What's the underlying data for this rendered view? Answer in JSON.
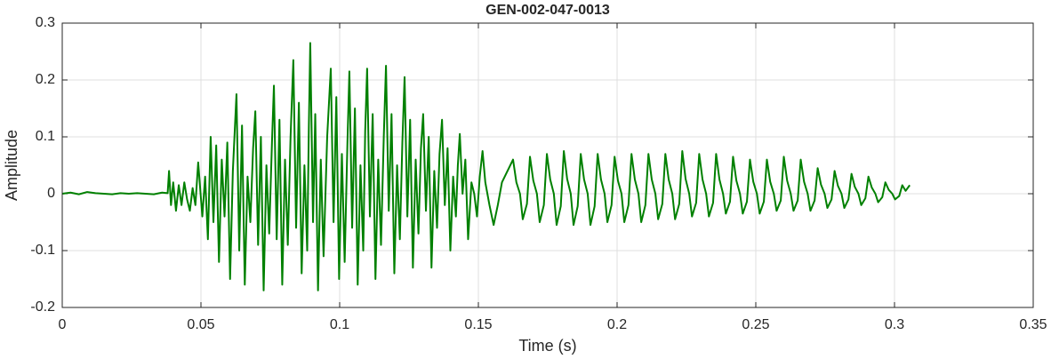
{
  "chart_data": {
    "type": "line",
    "title": "GEN-002-047-0013",
    "xlabel": "Time (s)",
    "ylabel": "Amplitude",
    "xlim": [
      0,
      0.35
    ],
    "xticks": [
      0,
      0.05,
      0.1,
      0.15,
      0.2,
      0.25,
      0.3,
      0.35
    ],
    "ylim": [
      -0.2,
      0.3
    ],
    "yticks": [
      -0.2,
      -0.1,
      0,
      0.1,
      0.2,
      0.3
    ],
    "grid": true,
    "color": "#008000",
    "x": [
      0,
      0.003,
      0.006,
      0.009,
      0.012,
      0.015,
      0.018,
      0.021,
      0.024,
      0.027,
      0.03,
      0.033,
      0.036,
      0.038,
      0.0385,
      0.0392,
      0.04,
      0.041,
      0.042,
      0.043,
      0.044,
      0.045,
      0.046,
      0.047,
      0.048,
      0.049,
      0.0505,
      0.0515,
      0.0525,
      0.0535,
      0.0545,
      0.0555,
      0.0565,
      0.0575,
      0.0585,
      0.0595,
      0.0605,
      0.0615,
      0.0628,
      0.0638,
      0.0648,
      0.0658,
      0.0668,
      0.0678,
      0.0688,
      0.0696,
      0.0706,
      0.0716,
      0.0726,
      0.0736,
      0.0746,
      0.0756,
      0.0763,
      0.0773,
      0.0783,
      0.0793,
      0.0803,
      0.0813,
      0.0823,
      0.0833,
      0.0843,
      0.0853,
      0.0863,
      0.0873,
      0.0883,
      0.0889,
      0.0894,
      0.0904,
      0.0912,
      0.0922,
      0.0932,
      0.0942,
      0.0955,
      0.0968,
      0.0978,
      0.0988,
      0.0998,
      0.1008,
      0.1018,
      0.1028,
      0.1035,
      0.1045,
      0.1055,
      0.1065,
      0.1075,
      0.1085,
      0.1092,
      0.1099,
      0.1109,
      0.1119,
      0.1129,
      0.1139,
      0.1149,
      0.1159,
      0.1167,
      0.1177,
      0.1187,
      0.1197,
      0.1207,
      0.1217,
      0.1226,
      0.1234,
      0.1244,
      0.1254,
      0.1264,
      0.1274,
      0.1284,
      0.1293,
      0.1301,
      0.1311,
      0.1321,
      0.1331,
      0.1341,
      0.1351,
      0.136,
      0.1369,
      0.1379,
      0.1389,
      0.1399,
      0.1409,
      0.1419,
      0.1426,
      0.1433,
      0.1443,
      0.1453,
      0.1463,
      0.1475,
      0.1485,
      0.1495,
      0.1505,
      0.1515,
      0.1525,
      0.154,
      0.1555,
      0.157,
      0.1585,
      0.1625,
      0.1637,
      0.165,
      0.166,
      0.1675,
      0.1686,
      0.1698,
      0.1711,
      0.1721,
      0.1736,
      0.1747,
      0.1759,
      0.1772,
      0.1782,
      0.1797,
      0.1808,
      0.182,
      0.1833,
      0.1843,
      0.1858,
      0.1869,
      0.1881,
      0.1894,
      0.1904,
      0.1919,
      0.193,
      0.1942,
      0.1955,
      0.1965,
      0.198,
      0.1991,
      0.2003,
      0.2016,
      0.2026,
      0.2041,
      0.2052,
      0.2064,
      0.2077,
      0.2087,
      0.2102,
      0.2113,
      0.2125,
      0.2138,
      0.2148,
      0.2163,
      0.2174,
      0.2186,
      0.2199,
      0.2209,
      0.2224,
      0.2235,
      0.2247,
      0.226,
      0.227,
      0.2285,
      0.2296,
      0.2308,
      0.2321,
      0.2331,
      0.2346,
      0.2357,
      0.2369,
      0.2382,
      0.2392,
      0.2407,
      0.2418,
      0.243,
      0.2443,
      0.2453,
      0.2468,
      0.2479,
      0.2491,
      0.2504,
      0.2514,
      0.2529,
      0.254,
      0.2552,
      0.2565,
      0.2575,
      0.259,
      0.2601,
      0.2613,
      0.2626,
      0.2636,
      0.2651,
      0.2662,
      0.2674,
      0.2687,
      0.2697,
      0.2712,
      0.2723,
      0.2735,
      0.2748,
      0.2758,
      0.2773,
      0.2784,
      0.2796,
      0.2809,
      0.2819,
      0.2834,
      0.2845,
      0.2857,
      0.287,
      0.288,
      0.2895,
      0.2906,
      0.2918,
      0.2931,
      0.2941,
      0.2956,
      0.2967,
      0.2979,
      0.2992,
      0.3002,
      0.3017,
      0.3028,
      0.304,
      0.3055
    ],
    "values": [
      0,
      0.002,
      -0.001,
      0.003,
      0.001,
      0,
      -0.001,
      0.001,
      0,
      0.001,
      0,
      -0.001,
      0.002,
      0.001,
      0.04,
      -0.02,
      0.02,
      -0.03,
      0.015,
      -0.02,
      0.02,
      -0.01,
      -0.03,
      0.01,
      -0.02,
      0.055,
      -0.04,
      0.03,
      -0.08,
      0.1,
      -0.05,
      0.085,
      -0.12,
      0.06,
      -0.04,
      0.09,
      -0.15,
      0.04,
      0.175,
      -0.1,
      0.12,
      -0.16,
      0.03,
      -0.05,
      0.08,
      0.145,
      -0.09,
      0.1,
      -0.17,
      0.05,
      -0.07,
      0.09,
      0.19,
      -0.08,
      0.13,
      -0.16,
      0.06,
      -0.09,
      0.1,
      0.235,
      -0.06,
      0.16,
      -0.14,
      0.05,
      -0.1,
      0.12,
      0.265,
      -0.05,
      0.14,
      -0.17,
      0.06,
      -0.11,
      0.1,
      0.22,
      -0.05,
      0.17,
      -0.15,
      0.07,
      -0.12,
      0.09,
      0.215,
      -0.06,
      0.15,
      -0.16,
      0.05,
      -0.1,
      0.11,
      0.22,
      -0.04,
      0.14,
      -0.15,
      0.06,
      -0.09,
      0.1,
      0.225,
      -0.03,
      0.14,
      -0.14,
      0.05,
      -0.08,
      0.09,
      0.205,
      -0.04,
      0.13,
      -0.13,
      0.06,
      -0.07,
      0.08,
      0.14,
      -0.03,
      0.1,
      -0.13,
      0.04,
      -0.06,
      0.07,
      0.13,
      -0.02,
      0.08,
      -0.1,
      0.03,
      -0.04,
      0.05,
      0.105,
      0,
      0.06,
      -0.08,
      0.02,
      0,
      -0.04,
      0.03,
      0.075,
      0.02,
      -0.02,
      -0.055,
      -0.02,
      0.02,
      0.06,
      0.02,
      0,
      -0.045,
      -0.018,
      0.065,
      0.023,
      0,
      -0.05,
      -0.02,
      0.07,
      0.025,
      0,
      -0.055,
      -0.022,
      0.075,
      0.026,
      0,
      -0.055,
      -0.022,
      0.07,
      0.025,
      0,
      -0.055,
      -0.022,
      0.07,
      0.025,
      0,
      -0.05,
      -0.02,
      0.065,
      0.023,
      0,
      -0.05,
      -0.02,
      0.07,
      0.025,
      0,
      -0.05,
      -0.02,
      0.07,
      0.025,
      0,
      -0.045,
      -0.018,
      0.07,
      0.025,
      0,
      -0.045,
      -0.018,
      0.075,
      0.026,
      0,
      -0.04,
      -0.016,
      0.07,
      0.025,
      0,
      -0.04,
      -0.016,
      0.07,
      0.025,
      0,
      -0.035,
      -0.014,
      0.065,
      0.023,
      0,
      -0.035,
      -0.014,
      0.06,
      0.021,
      0,
      -0.035,
      -0.014,
      0.06,
      0.021,
      0,
      -0.03,
      -0.012,
      0.065,
      0.023,
      0,
      -0.03,
      -0.012,
      0.06,
      0.021,
      0,
      -0.03,
      -0.012,
      0.045,
      0.016,
      0,
      -0.025,
      -0.01,
      0.04,
      0.014,
      0,
      -0.025,
      -0.01,
      0.035,
      0.012,
      0,
      -0.02,
      -0.008,
      0.03,
      0.011,
      0,
      -0.015,
      -0.006,
      0.02,
      0.007,
      0,
      -0.01,
      -0.004,
      0.015,
      0.005,
      0.015
    ]
  }
}
